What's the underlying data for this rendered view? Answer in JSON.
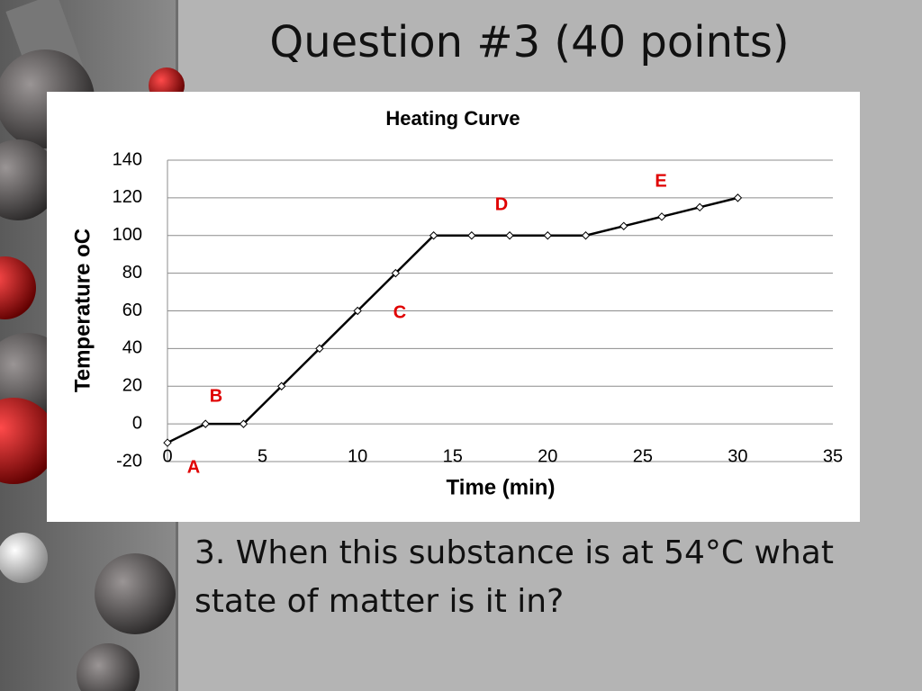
{
  "slide_title": "Question #3 (40 points)",
  "question": "3. When this substance is at 54°C what state of matter is it in?",
  "chart_data": {
    "type": "line",
    "title": "Heating Curve",
    "x_label": "Time (min)",
    "y_label": "Temperature oC",
    "x": [
      0,
      2,
      4,
      6,
      8,
      10,
      12,
      14,
      16,
      18,
      20,
      22,
      24,
      26,
      28,
      30
    ],
    "series": [
      {
        "name": "Temperature",
        "color": "#000000",
        "values": [
          -10,
          0,
          0,
          20,
          40,
          60,
          80,
          100,
          100,
          100,
          100,
          100,
          105,
          110,
          115,
          120
        ]
      }
    ],
    "xlim": [
      0,
      35
    ],
    "xticks": [
      0,
      5,
      10,
      15,
      20,
      25,
      30,
      35
    ],
    "ylim": [
      -20,
      140
    ],
    "yticks": [
      -20,
      0,
      20,
      40,
      60,
      80,
      100,
      120,
      140
    ],
    "grid": true,
    "legend": false,
    "annotations": [
      "A",
      "B",
      "C",
      "D",
      "E"
    ]
  }
}
